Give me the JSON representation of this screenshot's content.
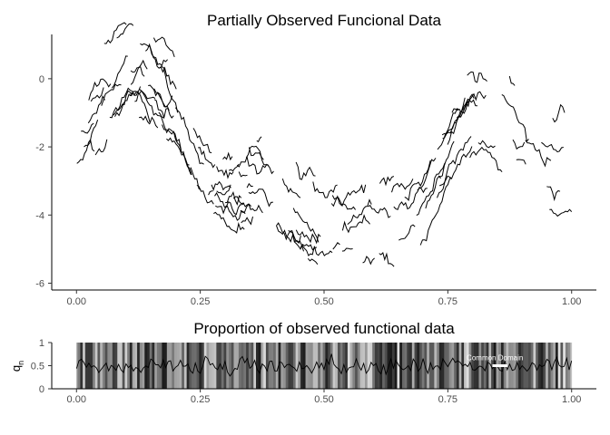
{
  "chart_data": [
    {
      "type": "line",
      "title": "Partially Observed Funcional Data",
      "xlabel": "",
      "ylabel": "",
      "xlim": [
        -0.05,
        1.05
      ],
      "ylim": [
        -6.2,
        1.3
      ],
      "x_ticks": [
        0.0,
        0.25,
        0.5,
        0.75,
        1.0
      ],
      "x_tick_labels": [
        "0.00",
        "0.25",
        "0.50",
        "0.75",
        "1.00"
      ],
      "y_ticks": [
        0,
        -2,
        -4,
        -6
      ],
      "y_tick_labels": [
        "0",
        "-2",
        "-4",
        "-6"
      ],
      "grid": false,
      "series_color": "#000000",
      "curve_count": 50,
      "segments_per_curve_range": [
        1,
        4
      ],
      "segment_length_range": [
        0.008,
        0.07
      ],
      "mean_curve": {
        "x": [
          0.0,
          0.05,
          0.1,
          0.13,
          0.2,
          0.25,
          0.3,
          0.35,
          0.4,
          0.45,
          0.5,
          0.55,
          0.6,
          0.65,
          0.7,
          0.75,
          0.8,
          0.85,
          0.9,
          0.95,
          1.0
        ],
        "y": [
          -1.3,
          -0.8,
          0.1,
          0.2,
          -1.0,
          -2.4,
          -2.9,
          -2.9,
          -3.3,
          -4.0,
          -4.5,
          -4.2,
          -3.8,
          -3.8,
          -3.0,
          -1.5,
          -0.4,
          -0.8,
          -1.8,
          -2.5,
          -2.2
        ]
      },
      "vertical_shift_sd": 0.8
    },
    {
      "type": "line",
      "title": "Proportion of observed functional data",
      "xlabel": "",
      "ylabel": "q",
      "ylabel_subscript": "n",
      "xlim": [
        -0.05,
        1.05
      ],
      "ylim": [
        0,
        1
      ],
      "x_ticks": [
        0.0,
        0.25,
        0.5,
        0.75,
        1.0
      ],
      "x_tick_labels": [
        "0.00",
        "0.25",
        "0.50",
        "0.75",
        "1.00"
      ],
      "y_ticks": [
        0,
        0.5,
        1
      ],
      "y_tick_labels": [
        "0",
        "0.5",
        "1"
      ],
      "grid": false,
      "background": "grayscale band showing per-point observation proportion",
      "grid_points": 201,
      "proportion_mean": 0.5,
      "proportion_range": [
        0.15,
        0.85
      ],
      "line_color": "#000000",
      "annotation": {
        "text": "Common Domain",
        "x_start": 0.84,
        "x_end": 0.87,
        "y": 0.5,
        "color": "#ffffff"
      }
    }
  ]
}
